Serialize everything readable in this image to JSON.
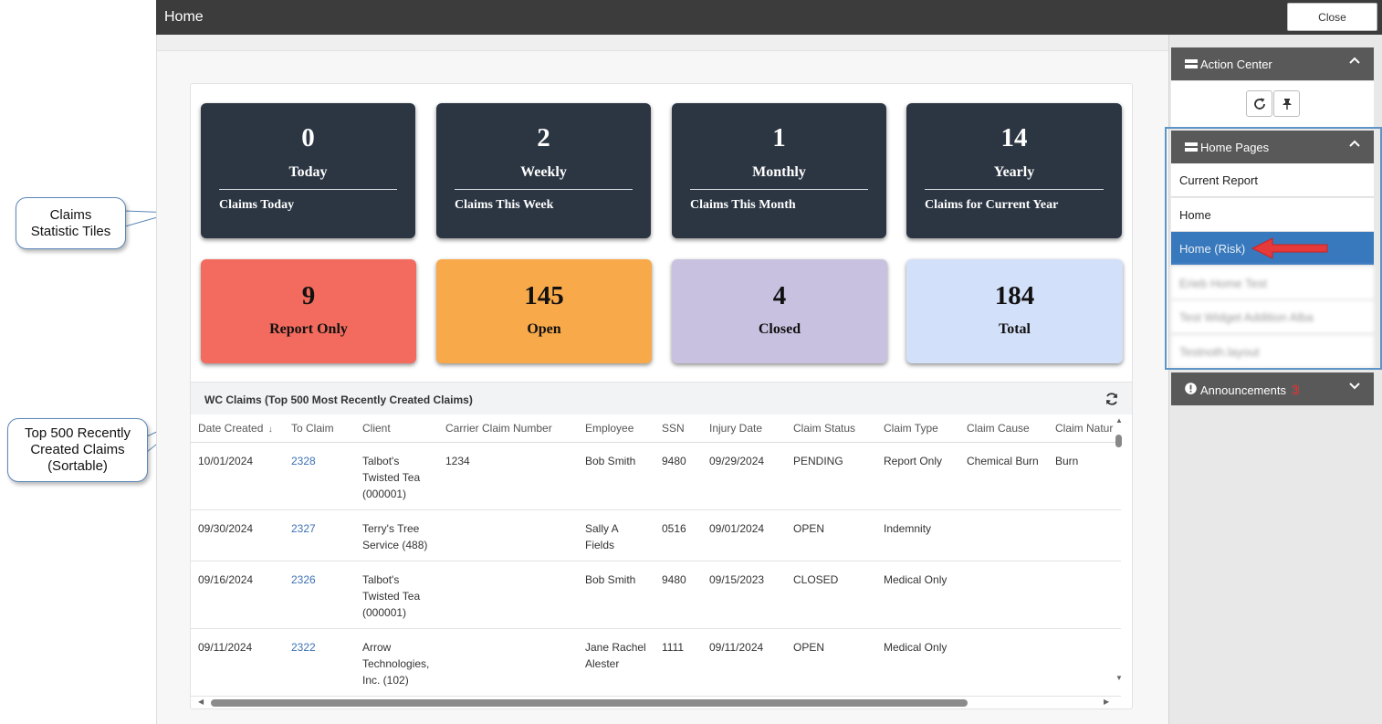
{
  "window": {
    "title": "Home",
    "close_label": "Close"
  },
  "annotations": {
    "tiles": "Claims\nStatistic Tiles",
    "claims": "Top 500 Recently\nCreated Claims\n(Sortable)"
  },
  "stat_tiles": [
    {
      "value": "0",
      "period": "Today",
      "description": "Claims Today"
    },
    {
      "value": "2",
      "period": "Weekly",
      "description": "Claims This Week"
    },
    {
      "value": "1",
      "period": "Monthly",
      "description": "Claims This Month"
    },
    {
      "value": "14",
      "period": "Yearly",
      "description": "Claims for Current Year"
    }
  ],
  "status_tiles": [
    {
      "value": "9",
      "label": "Report Only",
      "color": "#f26b5e"
    },
    {
      "value": "145",
      "label": "Open",
      "color": "#f8a94a"
    },
    {
      "value": "4",
      "label": "Closed",
      "color": "#c8c2e0"
    },
    {
      "value": "184",
      "label": "Total",
      "color": "#d3e0f9"
    }
  ],
  "claims_table": {
    "title": "WC Claims (Top 500 Most Recently Created Claims)",
    "sort_indicator": "↓",
    "columns": [
      "Date Created",
      "To Claim",
      "Client",
      "Carrier Claim Number",
      "Employee",
      "SSN",
      "Injury Date",
      "Claim Status",
      "Claim Type",
      "Claim Cause",
      "Claim Natur"
    ],
    "rows": [
      [
        "10/01/2024",
        "2328",
        "Talbot's Twisted Tea (000001)",
        "1234",
        "Bob Smith",
        "9480",
        "09/29/2024",
        "PENDING",
        "Report Only",
        "Chemical Burn",
        "Burn"
      ],
      [
        "09/30/2024",
        "2327",
        "Terry's Tree Service (488)",
        "",
        "Sally A Fields",
        "0516",
        "09/01/2024",
        "OPEN",
        "Indemnity",
        "",
        ""
      ],
      [
        "09/16/2024",
        "2326",
        "Talbot's Twisted Tea (000001)",
        "",
        "Bob Smith",
        "9480",
        "09/15/2023",
        "CLOSED",
        "Medical Only",
        "",
        ""
      ],
      [
        "09/11/2024",
        "2322",
        "Arrow Technologies, Inc. (102)",
        "",
        "Jane Rachel Alester",
        "1111",
        "09/11/2024",
        "OPEN",
        "Medical Only",
        "",
        ""
      ]
    ]
  },
  "sidebar": {
    "action_center": {
      "title": "Action Center",
      "refresh_icon": "refresh-icon",
      "pin_icon": "pin-icon"
    },
    "home_pages": {
      "title": "Home Pages",
      "items": [
        "Current Report",
        "Home",
        "Home (Risk)",
        "Erieb Home Test",
        "Test Widget Addition Alba",
        "Testnoth.layout"
      ],
      "active_index": 2
    },
    "announcements": {
      "title": "Announcements",
      "count": "3"
    }
  },
  "colors": {
    "tile_dark": "#2c3643",
    "active_item": "#3879bd",
    "link": "#3d72b4",
    "badge": "#d21919",
    "arrow": "#e63a3a"
  }
}
